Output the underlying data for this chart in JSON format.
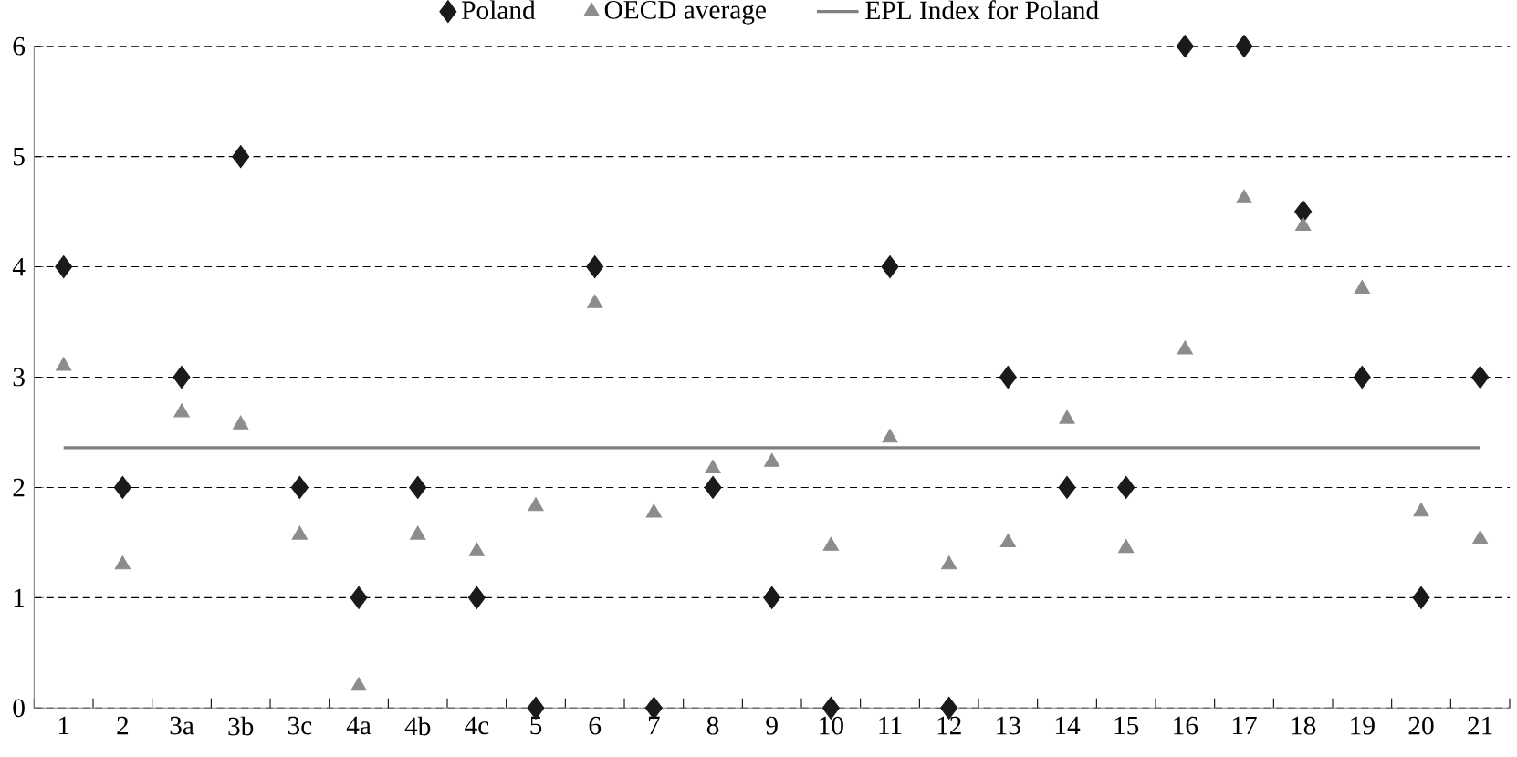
{
  "chart_data": {
    "type": "scatter",
    "categories": [
      "1",
      "2",
      "3a",
      "3b",
      "3c",
      "4a",
      "4b",
      "4c",
      "5",
      "6",
      "7",
      "8",
      "9",
      "10",
      "11",
      "12",
      "13",
      "14",
      "15",
      "16",
      "17",
      "18",
      "19",
      "20",
      "21"
    ],
    "series": [
      {
        "name": "Poland",
        "color": "#1a1a1a",
        "marker": "diamond",
        "values": [
          4,
          2,
          3,
          5,
          2,
          1,
          2,
          1,
          0,
          4,
          0,
          2,
          1,
          0,
          4,
          0,
          3,
          2,
          2,
          6,
          6,
          4.5,
          3,
          1,
          3
        ]
      },
      {
        "name": "OECD average",
        "color": "#8c8c8c",
        "marker": "triangle",
        "values": [
          3.1,
          1.3,
          2.68,
          2.57,
          1.57,
          0.2,
          1.57,
          1.42,
          1.83,
          3.67,
          1.77,
          2.17,
          2.23,
          1.47,
          2.45,
          1.3,
          1.5,
          2.62,
          1.45,
          3.25,
          4.62,
          4.37,
          3.8,
          1.78,
          1.53
        ]
      },
      {
        "name": "EPL Index for Poland",
        "type": "line",
        "color": "#7f7f7f",
        "marker": "none",
        "line_style": "solid",
        "values": [
          2.36,
          2.36,
          2.36,
          2.36,
          2.36,
          2.36,
          2.36,
          2.36,
          2.36,
          2.36,
          2.36,
          2.36,
          2.36,
          2.36,
          2.36,
          2.36,
          2.36,
          2.36,
          2.36,
          2.36,
          2.36,
          2.36,
          2.36,
          2.36,
          2.36
        ]
      }
    ],
    "ylim": [
      0,
      6
    ],
    "yticks": [
      0,
      1,
      2,
      3,
      4,
      5,
      6
    ],
    "grid": "y",
    "legend": "top"
  }
}
